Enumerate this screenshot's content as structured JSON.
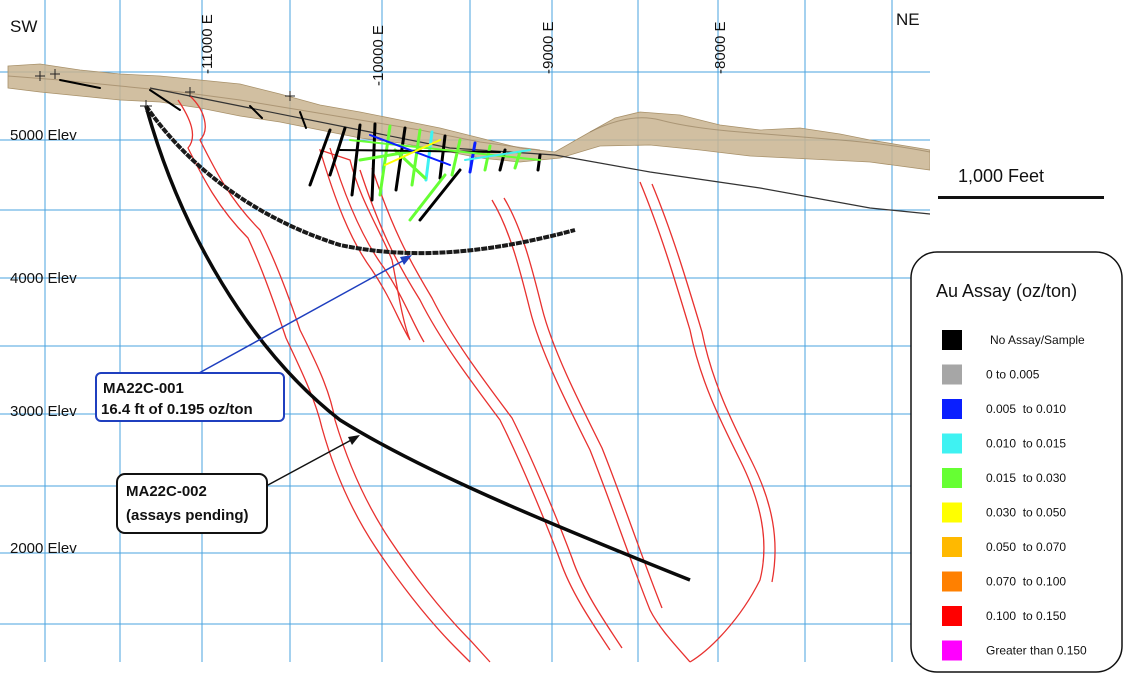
{
  "directions": {
    "left": "SW",
    "right": "NE"
  },
  "eastings": [
    "-11000 E",
    "-10000 E",
    "-9000 E",
    "-8000 E"
  ],
  "elevations": [
    "5000 Elev",
    "4000 Elev",
    "3000 Elev",
    "2000 Elev"
  ],
  "scale_bar": {
    "label": "1,000 Feet"
  },
  "callouts": [
    {
      "id": "MA22C-001",
      "line1": "MA22C-001",
      "line2": "16.4 ft of 0.195 oz/ton",
      "color": "#1f3fbf"
    },
    {
      "id": "MA22C-002",
      "line1": "MA22C-002",
      "line2": "(assays pending)",
      "color": "#111111"
    }
  ],
  "legend": {
    "title": "Au Assay (oz/ton)",
    "items": [
      {
        "label": "No Assay/Sample",
        "color": "#000000"
      },
      {
        "label": "0 to 0.005",
        "color": "#a6a6a6"
      },
      {
        "label": "0.005  to 0.010",
        "color": "#0a1fff"
      },
      {
        "label": "0.010  to 0.015",
        "color": "#3ff2f2"
      },
      {
        "label": "0.015  to 0.030",
        "color": "#66ff33"
      },
      {
        "label": "0.030  to 0.050",
        "color": "#ffff00"
      },
      {
        "label": "0.050  to 0.070",
        "color": "#ffb900"
      },
      {
        "label": "0.070  to 0.100",
        "color": "#ff8000"
      },
      {
        "label": "0.100  to 0.150",
        "color": "#ff0000"
      },
      {
        "label": "Greater than 0.150",
        "color": "#ff00ff"
      }
    ]
  },
  "colors": {
    "grid": "#4aa3df",
    "shell": "#e8312f",
    "terrain": "#c9b490",
    "drill": "#000000"
  }
}
